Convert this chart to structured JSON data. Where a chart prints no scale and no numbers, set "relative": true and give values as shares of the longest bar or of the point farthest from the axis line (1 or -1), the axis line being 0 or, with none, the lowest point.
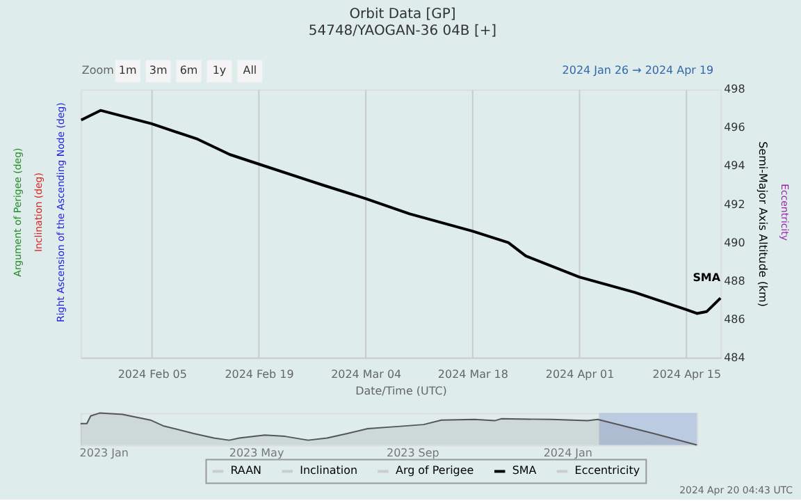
{
  "chart_data": [
    {
      "type": "line",
      "title": "Orbit Data [GP]",
      "subtitle": "54748/YAOGAN-36 04B [+]",
      "xlabel": "Date/Time (UTC)",
      "ylabel": "Right Ascension of the Ascending Node (deg)",
      "y2label": "Semi-Major Axis Altitude (km)",
      "x": [
        "2024-01-26T18:00",
        "2024-01-29T07:00",
        "2024-02-05",
        "2024-02-11",
        "2024-02-15T05:00",
        "2024-02-19",
        "2024-02-27T10:00",
        "2024-03-04",
        "2024-03-09T19:00",
        "2024-03-18",
        "2024-03-22T17:00",
        "2024-03-25",
        "2024-04-01",
        "2024-04-08T06:00",
        "2024-04-15",
        "2024-04-16T10:00",
        "2024-04-17T17:00",
        "2024-04-19T12:00"
      ],
      "series": [
        {
          "name": "RAAN",
          "color": "#cccccc",
          "values": [
            null,
            null,
            null,
            null,
            null,
            null,
            null,
            null,
            null,
            null,
            null,
            null,
            null,
            null,
            null,
            null,
            null,
            null
          ]
        },
        {
          "name": "Inclination",
          "color": "#cccccc",
          "values": [
            null,
            null,
            null,
            null,
            null,
            null,
            null,
            null,
            null,
            null,
            null,
            null,
            null,
            null,
            null,
            null,
            null,
            null
          ]
        },
        {
          "name": "Arg of Perigee",
          "color": "#cccccc",
          "values": [
            null,
            null,
            null,
            null,
            null,
            null,
            null,
            null,
            null,
            null,
            null,
            null,
            null,
            null,
            null,
            null,
            null,
            null
          ]
        },
        {
          "name": "SMA",
          "color": "#000000",
          "axis": "y2",
          "values": [
            496.4,
            496.9,
            496.2,
            495.4,
            494.6,
            494.1,
            493.0,
            492.3,
            491.5,
            490.6,
            490.0,
            489.3,
            488.2,
            487.4,
            486.5,
            486.3,
            486.4,
            487.1
          ]
        },
        {
          "name": "Eccentricity",
          "color": "#cccccc",
          "values": [
            null,
            null,
            null,
            null,
            null,
            null,
            null,
            null,
            null,
            null,
            null,
            null,
            null,
            null,
            null,
            null,
            null,
            null
          ]
        }
      ],
      "xlim": [
        "2024-01-26T16:00",
        "2024-04-19T12:00"
      ],
      "xticks": [
        {
          "value": "2024-02-05",
          "label": "2024 Feb 05"
        },
        {
          "value": "2024-02-19",
          "label": "2024 Feb 19"
        },
        {
          "value": "2024-03-04",
          "label": "2024 Mar 04"
        },
        {
          "value": "2024-03-18",
          "label": "2024 Mar 18"
        },
        {
          "value": "2024-04-01",
          "label": "2024 Apr 01"
        },
        {
          "value": "2024-04-15",
          "label": "2024 Apr 15"
        }
      ],
      "y2lim": [
        484,
        498
      ],
      "y2ticks": [
        484,
        486,
        488,
        490,
        492,
        494,
        496,
        498
      ],
      "grid": "x",
      "legend": "bottom",
      "marker": "none",
      "line_style": "solid",
      "annotations": [
        "Argument of Perigee (deg)",
        "Inclination (deg)",
        "Eccentricity",
        "Zoom",
        "1m",
        "3m",
        "6m",
        "1y",
        "All",
        "2024 Jan 26  →  2024 Apr 19",
        "2024 Apr 20 04:43 UTC"
      ]
    },
    {
      "type": "area",
      "relative": true,
      "color": "#555555",
      "x": [
        "2022-12-14",
        "2022-12-19",
        "2022-12-22",
        "2022-12-29",
        "2023-01-16",
        "2023-02-07",
        "2023-02-17",
        "2023-03-13",
        "2023-03-29",
        "2023-04-10",
        "2023-04-18",
        "2023-05-08",
        "2023-05-24",
        "2023-06-11",
        "2023-06-26",
        "2023-07-12",
        "2023-07-28",
        "2023-08-21",
        "2023-09-10",
        "2023-09-24",
        "2023-10-20",
        "2023-11-05",
        "2023-11-10",
        "2023-12-20",
        "2024-01-17",
        "2024-01-25",
        "2024-03-09",
        "2024-04-12"
      ],
      "values": [
        0.67,
        0.67,
        0.91,
        1.0,
        0.96,
        0.78,
        0.6,
        0.36,
        0.22,
        0.15,
        0.22,
        0.31,
        0.27,
        0.15,
        0.22,
        0.36,
        0.51,
        0.58,
        0.64,
        0.78,
        0.8,
        0.76,
        0.82,
        0.8,
        0.76,
        0.8,
        0.36,
        0.0
      ],
      "xlim": [
        "2022-12-14",
        "2024-04-12"
      ],
      "xticks": [
        {
          "value": "2023-01-01",
          "label": "2023 Jan"
        },
        {
          "value": "2023-05-01",
          "label": "2023 May"
        },
        {
          "value": "2023-09-01",
          "label": "2023 Sep"
        },
        {
          "value": "2024-01-01",
          "label": "2024 Jan"
        }
      ],
      "bands": [
        {
          "axis": "x",
          "from": "2024-01-26",
          "to": "2024-04-12",
          "color": "#b4c6e0"
        }
      ],
      "tick_labels": "x"
    }
  ]
}
